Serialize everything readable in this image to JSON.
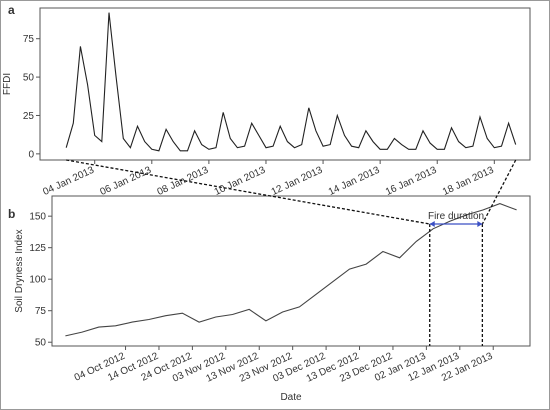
{
  "chart_data": [
    {
      "type": "line",
      "panel": "a",
      "ylabel": "FFDI",
      "color": "#222222",
      "x": [
        "2013-01-03T00:00",
        "2013-01-03T06:00",
        "2013-01-03T12:00",
        "2013-01-03T18:00",
        "2013-01-04T00:00",
        "2013-01-04T06:00",
        "2013-01-04T12:00",
        "2013-01-04T18:00",
        "2013-01-05T00:00",
        "2013-01-05T06:00",
        "2013-01-05T12:00",
        "2013-01-05T18:00",
        "2013-01-06T00:00",
        "2013-01-06T06:00",
        "2013-01-06T12:00",
        "2013-01-06T18:00",
        "2013-01-07T00:00",
        "2013-01-07T06:00",
        "2013-01-07T12:00",
        "2013-01-07T18:00",
        "2013-01-08T00:00",
        "2013-01-08T06:00",
        "2013-01-08T12:00",
        "2013-01-08T18:00",
        "2013-01-09T00:00",
        "2013-01-09T06:00",
        "2013-01-09T12:00",
        "2013-01-09T18:00",
        "2013-01-10T00:00",
        "2013-01-10T06:00",
        "2013-01-10T12:00",
        "2013-01-10T18:00",
        "2013-01-11T00:00",
        "2013-01-11T06:00",
        "2013-01-11T12:00",
        "2013-01-11T18:00",
        "2013-01-12T00:00",
        "2013-01-12T06:00",
        "2013-01-12T12:00",
        "2013-01-12T18:00",
        "2013-01-13T00:00",
        "2013-01-13T06:00",
        "2013-01-13T12:00",
        "2013-01-13T18:00",
        "2013-01-14T00:00",
        "2013-01-14T06:00",
        "2013-01-14T12:00",
        "2013-01-14T18:00",
        "2013-01-15T00:00",
        "2013-01-15T06:00",
        "2013-01-15T12:00",
        "2013-01-15T18:00",
        "2013-01-16T00:00",
        "2013-01-16T06:00",
        "2013-01-16T12:00",
        "2013-01-16T18:00",
        "2013-01-17T00:00",
        "2013-01-17T06:00",
        "2013-01-17T12:00",
        "2013-01-17T18:00",
        "2013-01-18T00:00",
        "2013-01-18T06:00",
        "2013-01-18T12:00",
        "2013-01-18T18:00"
      ],
      "values": [
        4,
        20,
        70,
        45,
        12,
        8,
        92,
        50,
        10,
        4,
        18,
        8,
        3,
        2,
        16,
        8,
        2,
        2,
        15,
        6,
        3,
        4,
        27,
        10,
        4,
        5,
        20,
        12,
        4,
        5,
        18,
        8,
        4,
        6,
        30,
        15,
        5,
        6,
        25,
        12,
        5,
        4,
        15,
        8,
        3,
        3,
        10,
        6,
        3,
        3,
        15,
        7,
        3,
        3,
        17,
        8,
        4,
        5,
        24,
        10,
        4,
        5,
        20,
        6
      ],
      "xlim": [
        "2013-01-02T02:00",
        "2013-01-19T06:00"
      ],
      "xticks": [
        {
          "value": "2013-01-04",
          "label": "04 Jan 2013"
        },
        {
          "value": "2013-01-06",
          "label": "06 Jan 2013"
        },
        {
          "value": "2013-01-08",
          "label": "08 Jan 2013"
        },
        {
          "value": "2013-01-10",
          "label": "10 Jan 2013"
        },
        {
          "value": "2013-01-12",
          "label": "12 Jan 2013"
        },
        {
          "value": "2013-01-14",
          "label": "14 Jan 2013"
        },
        {
          "value": "2013-01-16",
          "label": "16 Jan 2013"
        },
        {
          "value": "2013-01-18",
          "label": "18 Jan 2013"
        }
      ],
      "ylim": [
        -4,
        95
      ],
      "yticks": [
        0,
        25,
        50,
        75
      ]
    },
    {
      "type": "line",
      "panel": "b",
      "ylabel": "Soil Dryness Index",
      "xlabel": "Date",
      "color": "#444444",
      "annotation": "Fire duration",
      "annotation_color": "#3a4fc4",
      "x": [
        "2012-09-16",
        "2012-09-21",
        "2012-09-26",
        "2012-10-01",
        "2012-10-06",
        "2012-10-11",
        "2012-10-16",
        "2012-10-21",
        "2012-10-26",
        "2012-10-31",
        "2012-11-05",
        "2012-11-10",
        "2012-11-15",
        "2012-11-20",
        "2012-11-25",
        "2012-11-30",
        "2012-12-05",
        "2012-12-10",
        "2012-12-15",
        "2012-12-20",
        "2012-12-25",
        "2012-12-30",
        "2013-01-04",
        "2013-01-09",
        "2013-01-14",
        "2013-01-19",
        "2013-01-24",
        "2013-01-29"
      ],
      "values": [
        55,
        58,
        62,
        63,
        66,
        68,
        71,
        73,
        66,
        70,
        72,
        76,
        67,
        74,
        78,
        88,
        98,
        108,
        112,
        122,
        117,
        130,
        140,
        146,
        151,
        155,
        160,
        155
      ],
      "xlim": [
        "2012-09-12",
        "2013-02-02"
      ],
      "xticks": [
        {
          "value": "2012-10-04",
          "label": "04 Oct 2012"
        },
        {
          "value": "2012-10-14",
          "label": "14 Oct 2012"
        },
        {
          "value": "2012-10-24",
          "label": "24 Oct 2012"
        },
        {
          "value": "2012-11-03",
          "label": "03 Nov 2012"
        },
        {
          "value": "2012-11-13",
          "label": "13 Nov 2012"
        },
        {
          "value": "2012-11-23",
          "label": "23 Nov 2012"
        },
        {
          "value": "2012-12-03",
          "label": "03 Dec 2012"
        },
        {
          "value": "2012-12-13",
          "label": "13 Dec 2012"
        },
        {
          "value": "2012-12-23",
          "label": "23 Dec 2012"
        },
        {
          "value": "2013-01-02",
          "label": "02 Jan 2013"
        },
        {
          "value": "2013-01-12",
          "label": "12 Jan 2013"
        },
        {
          "value": "2013-01-22",
          "label": "22 Jan 2013"
        }
      ],
      "ylim": [
        47,
        166
      ],
      "yticks": [
        50,
        75,
        100,
        125,
        150
      ]
    }
  ]
}
